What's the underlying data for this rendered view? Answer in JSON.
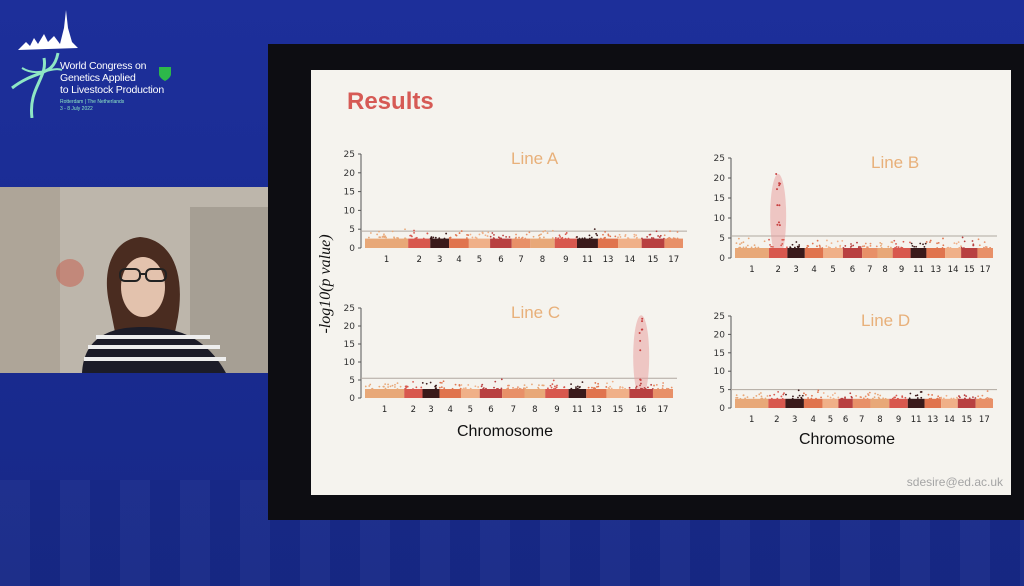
{
  "conference": {
    "line1": "World Congress on",
    "line2": "Genetics Applied",
    "line3": "to Livestock Production",
    "location": "Rotterdam | The Netherlands",
    "dates": "3 - 8 July 2022"
  },
  "slide": {
    "title": "Results",
    "ylabel": "-log10(p value)",
    "xlabel": "Chromosome",
    "email": "sdesire@ed.ac.uk"
  },
  "colors": {
    "chr_palette": [
      "#e8a878",
      "#d8584e",
      "#3a1a1a",
      "#e0744e",
      "#f0b088",
      "#b84040",
      "#e89068"
    ],
    "threshold": "#b0a8a0",
    "highlight": "#e8a0a0",
    "panel_title": "#e8b07a"
  },
  "chart_data": [
    {
      "type": "scatter",
      "title": "Line A",
      "ylim": [
        0,
        25
      ],
      "yticks": [
        0,
        5,
        10,
        15,
        20,
        25
      ],
      "chromosome_labels": [
        "1",
        "2",
        "3",
        "4",
        "5",
        "6",
        "7",
        "8",
        "9",
        "11",
        "13",
        "14",
        "15",
        "17"
      ],
      "threshold": 4.5,
      "highlight": null
    },
    {
      "type": "scatter",
      "title": "Line B",
      "ylim": [
        0,
        25
      ],
      "yticks": [
        0,
        5,
        10,
        15,
        20,
        25
      ],
      "chromosome_labels": [
        "1",
        "2",
        "3",
        "4",
        "5",
        "6",
        "7",
        "8",
        "9",
        "11",
        "13",
        "14",
        "15",
        "17"
      ],
      "threshold": 5.5,
      "highlight": {
        "chromosome": "2",
        "peak": 20
      }
    },
    {
      "type": "scatter",
      "title": "Line C",
      "ylim": [
        0,
        25
      ],
      "yticks": [
        0,
        5,
        10,
        15,
        20,
        25
      ],
      "chromosome_labels": [
        "1",
        "2",
        "3",
        "4",
        "5",
        "6",
        "7",
        "8",
        "9",
        "11",
        "13",
        "15",
        "16",
        "17"
      ],
      "threshold": 5.5,
      "highlight": {
        "chromosome": "16",
        "peak": 22
      }
    },
    {
      "type": "scatter",
      "title": "Line D",
      "ylim": [
        0,
        25
      ],
      "yticks": [
        0,
        5,
        10,
        15,
        20,
        25
      ],
      "chromosome_labels": [
        "1",
        "2",
        "3",
        "4",
        "5",
        "6",
        "7",
        "8",
        "9",
        "11",
        "13",
        "14",
        "15",
        "17"
      ],
      "threshold": 5,
      "highlight": null
    }
  ]
}
